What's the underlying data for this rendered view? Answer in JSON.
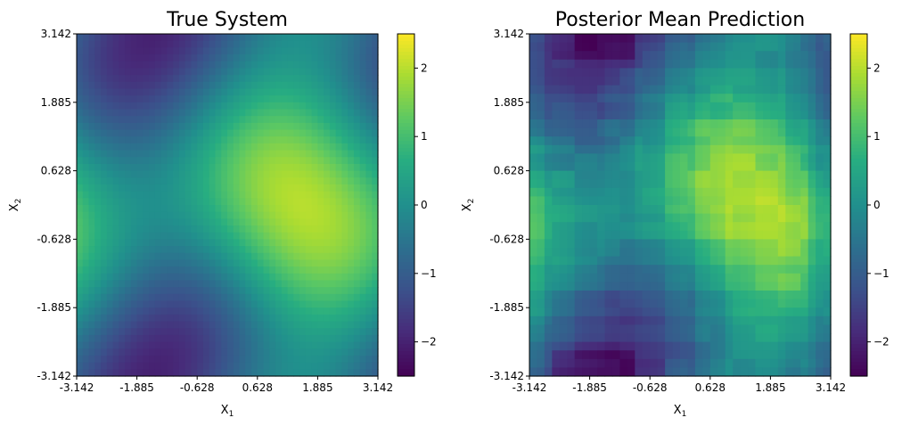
{
  "chart_data": [
    {
      "type": "heatmap",
      "title": "True System",
      "xlabel": "X1",
      "ylabel": "X2",
      "xlim": [
        -3.142,
        3.142
      ],
      "ylim": [
        -3.142,
        3.142
      ],
      "x_ticks": [
        "-3.142",
        "-1.885",
        "-0.628",
        "0.628",
        "1.885",
        "3.142"
      ],
      "y_ticks": [
        "-3.142",
        "-1.885",
        "-0.628",
        "0.628",
        "1.885",
        "3.142"
      ],
      "grid_size": 50,
      "field": "sin(x1)+cos(x2)+0.5*cos(x1)*sin(x2)",
      "colorbar": {
        "colormap": "viridis",
        "range": [
          -2.5,
          2.5
        ],
        "ticks": [
          "−2",
          "−1",
          "0",
          "1",
          "2"
        ],
        "tick_values": [
          -2,
          -1,
          0,
          1,
          2
        ]
      },
      "approx_features": {
        "maximum": {
          "x1": 1.7,
          "x2": 0.0,
          "value": 2.0
        },
        "minima": [
          {
            "x1": -1.5,
            "x2": 2.7,
            "value": -2.0
          },
          {
            "x1": -1.5,
            "x2": -2.7,
            "value": -2.0
          }
        ]
      },
      "grid": false
    },
    {
      "type": "heatmap",
      "title": "Posterior Mean Prediction",
      "xlabel": "X1",
      "ylabel": "X2",
      "xlim": [
        -3.142,
        3.142
      ],
      "ylim": [
        -3.142,
        3.142
      ],
      "x_ticks": [
        "-3.142",
        "-1.885",
        "-0.628",
        "0.628",
        "1.885",
        "3.142"
      ],
      "y_ticks": [
        "-3.142",
        "-1.885",
        "-0.628",
        "0.628",
        "1.885",
        "3.142"
      ],
      "grid_size": 40,
      "field": "approximation of true system with blocky artifacts",
      "colorbar": {
        "colormap": "viridis",
        "range": [
          -2.5,
          2.5
        ],
        "ticks": [
          "−2",
          "−1",
          "0",
          "1",
          "2"
        ],
        "tick_values": [
          -2,
          -1,
          0,
          1,
          2
        ]
      },
      "approx_features": {
        "maximum": {
          "x1": 1.6,
          "x2": -0.2,
          "value": 2.0
        },
        "minima": [
          {
            "x1": -1.7,
            "x2": 3.0,
            "value": -2.5
          },
          {
            "x1": -1.7,
            "x2": -3.0,
            "value": -2.5
          }
        ]
      },
      "grid": false
    }
  ]
}
